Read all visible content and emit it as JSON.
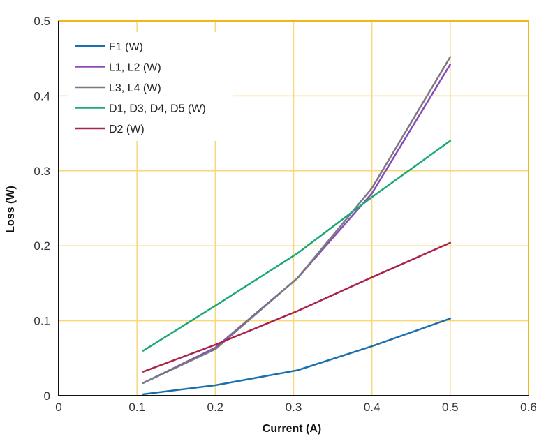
{
  "chart_data": {
    "type": "line",
    "title": "",
    "xlabel": "Current (A)",
    "ylabel": "Loss (W)",
    "xlim": [
      0,
      0.6
    ],
    "ylim": [
      0,
      0.5
    ],
    "xticks": [
      0,
      0.1,
      0.2,
      0.3,
      0.4,
      0.5,
      0.6
    ],
    "yticks": [
      0,
      0.1,
      0.2,
      0.3,
      0.4,
      0.5
    ],
    "xtick_labels": [
      "0",
      "0.1",
      "0.2",
      "0.3",
      "0.4",
      "0.5",
      "0.6"
    ],
    "ytick_labels": [
      "0",
      "0.1",
      "0.2",
      "0.3",
      "0.4",
      "0.5"
    ],
    "grid": true,
    "legend_position": "top-left",
    "colors": {
      "grid": "#f7d77a",
      "frame": "#f2b51c",
      "background": "#ffffff"
    },
    "series": [
      {
        "name": "F1 (W)",
        "color": "#1a6faf",
        "x": [
          0.108,
          0.2,
          0.305,
          0.4,
          0.5
        ],
        "y": [
          0.002,
          0.014,
          0.034,
          0.066,
          0.103
        ]
      },
      {
        "name": "L1, L2 (W)",
        "color": "#8a4bb8",
        "x": [
          0.108,
          0.2,
          0.305,
          0.4,
          0.5
        ],
        "y": [
          0.017,
          0.064,
          0.157,
          0.27,
          0.442
        ]
      },
      {
        "name": "L3, L4 (W)",
        "color": "#777a82",
        "x": [
          0.108,
          0.2,
          0.305,
          0.4,
          0.5
        ],
        "y": [
          0.017,
          0.062,
          0.157,
          0.277,
          0.452
        ]
      },
      {
        "name": "D1, D3, D4, D5 (W)",
        "color": "#1aa876",
        "x": [
          0.108,
          0.2,
          0.305,
          0.4,
          0.5
        ],
        "y": [
          0.06,
          0.12,
          0.19,
          0.265,
          0.34
        ]
      },
      {
        "name": "D2 (W)",
        "color": "#a8224a",
        "x": [
          0.108,
          0.2,
          0.305,
          0.4,
          0.5
        ],
        "y": [
          0.032,
          0.068,
          0.113,
          0.158,
          0.204
        ]
      }
    ]
  }
}
